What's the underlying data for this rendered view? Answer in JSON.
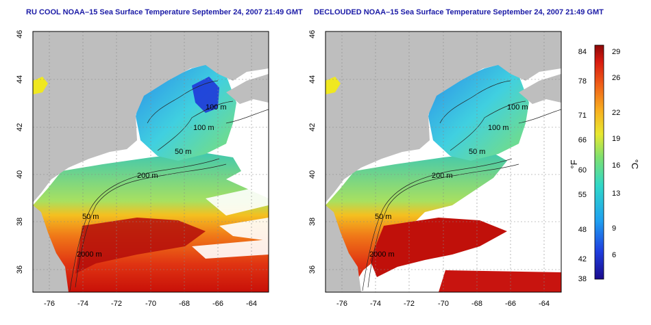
{
  "panels": [
    {
      "id": "left",
      "title": "RU COOL NOAA–15 Sea Surface Temperature September 24, 2007 21:49 GMT",
      "variant": "raw"
    },
    {
      "id": "right",
      "title": "DECLOUDED NOAA–15 Sea Surface Temperature September 24, 2007 21:49 GMT",
      "variant": "declouded"
    }
  ],
  "axes": {
    "x_ticks": [
      "-76",
      "-74",
      "-72",
      "-70",
      "-68",
      "-66",
      "-64"
    ],
    "y_ticks": [
      "36",
      "38",
      "40",
      "42",
      "44",
      "46"
    ],
    "x_range": [
      -77,
      -63
    ],
    "y_range": [
      35,
      46
    ]
  },
  "contour_labels": [
    "100 m",
    "100 m",
    "50 m",
    "200 m",
    "50 m",
    "2000 m"
  ],
  "colorbar": {
    "fahrenheit_ticks": [
      "84",
      "78",
      "71",
      "66",
      "60",
      "55",
      "48",
      "42",
      "38"
    ],
    "celsius_ticks": [
      "29",
      "26",
      "22",
      "19",
      "16",
      "13",
      "9",
      "6"
    ],
    "label_f": "°F",
    "label_c": "°C"
  },
  "colors": {
    "land": "#bebebe",
    "cloud": "#ffffff",
    "title": "#1a1aa6",
    "warm": "#c8140f",
    "cool": "#1c2fd8"
  }
}
